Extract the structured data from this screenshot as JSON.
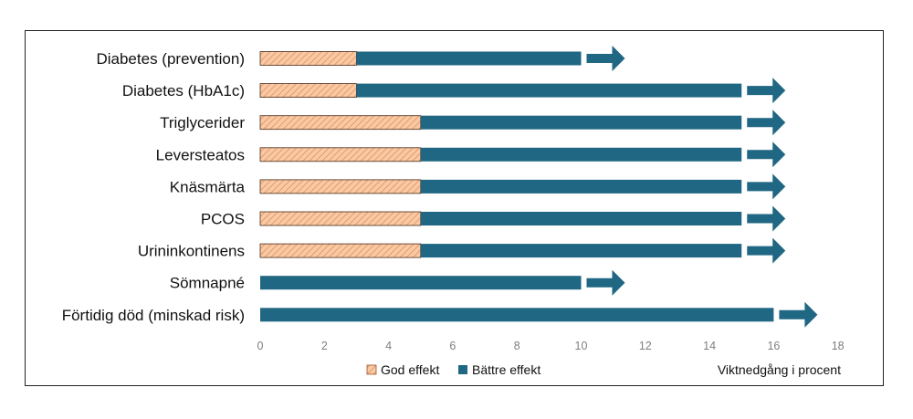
{
  "chart_data": {
    "type": "bar",
    "orientation": "horizontal",
    "stacked": true,
    "categories": [
      "Diabetes (prevention)",
      "Diabetes (HbA1c)",
      "Triglycerider",
      "Leversteatos",
      "Knäsmärta",
      "PCOS",
      "Urininkontinens",
      "Sömnapné",
      "Förtidig död (minskad risk)"
    ],
    "series": [
      {
        "name": "God effekt",
        "values": [
          3,
          3,
          5,
          5,
          5,
          5,
          5,
          0,
          0
        ],
        "color": "#f4b183",
        "pattern": "hatched"
      },
      {
        "name": "Bättre effekt",
        "values": [
          7,
          12,
          10,
          10,
          10,
          10,
          10,
          10,
          16
        ],
        "color": "#1f6782"
      }
    ],
    "arrow_color": "#1f6782",
    "xlim": [
      0,
      18
    ],
    "xticks": [
      "0",
      "2",
      "4",
      "6",
      "8",
      "10",
      "12",
      "14",
      "16",
      "18"
    ],
    "xlabel": "Viktnedgång i procent",
    "legend_position": "bottom",
    "grid": false
  }
}
